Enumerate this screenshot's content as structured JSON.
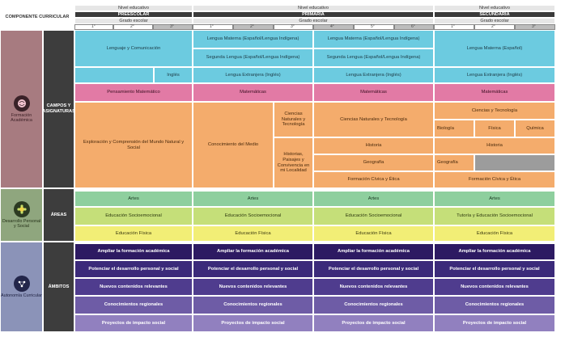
{
  "header": {
    "componente": "COMPONENTE CURRICULAR",
    "nivel_label": "Nivel educativo",
    "grado_label": "Grado escolar",
    "levels": [
      "PREESCOLAR",
      "PRIMARIA",
      "SECUNDARIA"
    ],
    "grades": [
      "1°",
      "2°",
      "3°",
      "1°",
      "2°",
      "3°",
      "4°",
      "5°",
      "6°",
      "1°",
      "2°",
      "3°"
    ]
  },
  "components": {
    "formacion": "Formación Académica",
    "desarrollo": "Desarrollo Personal y Social",
    "autonomia": "Autonomía Curricular"
  },
  "categories": {
    "campos": "CAMPOS Y ASIGNATURAS",
    "areas": "ÁREAS",
    "ambitos": "ÁMBITOS"
  },
  "formacion": {
    "pre_lenguaje": "Lenguaje y Comunicación",
    "pre_ingles": "Inglés",
    "pre_pensamiento": "Pensamiento Matemático",
    "pre_exploracion": "Exploración y Comprensión del Mundo Natural y Social",
    "lengua_materna_indigena": "Lengua Materna (Español/Lengua Indígena)",
    "segunda_lengua": "Segunda Lengua (Español/Lengua Indígena)",
    "lengua_extranjera": "Lengua Extranjera (Inglés)",
    "matematicas": "Matemáticas",
    "conocimiento_medio": "Conocimiento del Medio",
    "ciencias_tecnologia_p12": "Ciencias Naturales y Tecnología",
    "historias_paisajes": "Historias, Paisajes y Convivencia en mi Localidad",
    "ciencias_naturales_tec": "Ciencias Naturales y Tecnología",
    "historia": "Historia",
    "geografia": "Geografía",
    "formacion_civica": "Formación Cívica y Ética",
    "sec_lengua_materna": "Lengua Materna (Español)",
    "sec_ciencias": "Ciencias y Tecnología",
    "biologia": "Biología",
    "fisica": "Física",
    "quimica": "Química"
  },
  "areas": {
    "artes": "Artes",
    "socioemocional": "Educación Socioemocional",
    "tutoria": "Tutoría y Educación Socioemocional",
    "fisica": "Educación Física"
  },
  "ambitos": [
    "Ampliar la formación académica",
    "Potenciar el desarrollo personal y social",
    "Nuevos contenidos relevantes",
    "Conocimientos regionales",
    "Proyectos de impacto social"
  ],
  "colors": {
    "blue": "#6ccbe0",
    "pink": "#e27aa5",
    "orange": "#f4ac6c",
    "green": "#8ecf9e",
    "lime": "#c5df79",
    "yellow": "#f2ee76",
    "purple_dark": "#2d1a62",
    "purple_light": "#9180bf"
  },
  "icons": [
    "brain-icon",
    "head-flower-icon",
    "head-network-icon"
  ]
}
